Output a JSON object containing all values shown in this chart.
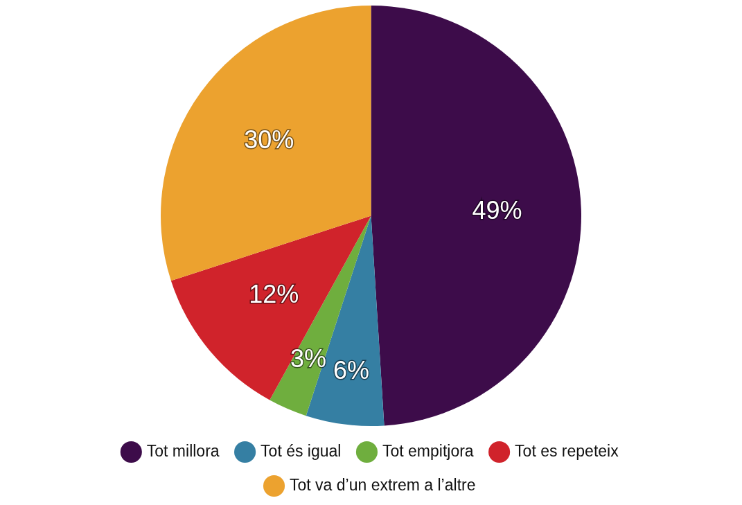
{
  "chart_data": {
    "type": "pie",
    "categories": [
      "Tot millora",
      "Tot és igual",
      "Tot empitjora",
      "Tot es repeteix",
      "Tot va d’un extrem a l’altre"
    ],
    "values": [
      49,
      6,
      3,
      12,
      30
    ],
    "colors": [
      "#3d0c4a",
      "#357fa3",
      "#6fae3e",
      "#d0232b",
      "#eca22f"
    ],
    "value_labels": [
      "49%",
      "6%",
      "3%",
      "12%",
      "30%"
    ],
    "legend": "bottom"
  }
}
